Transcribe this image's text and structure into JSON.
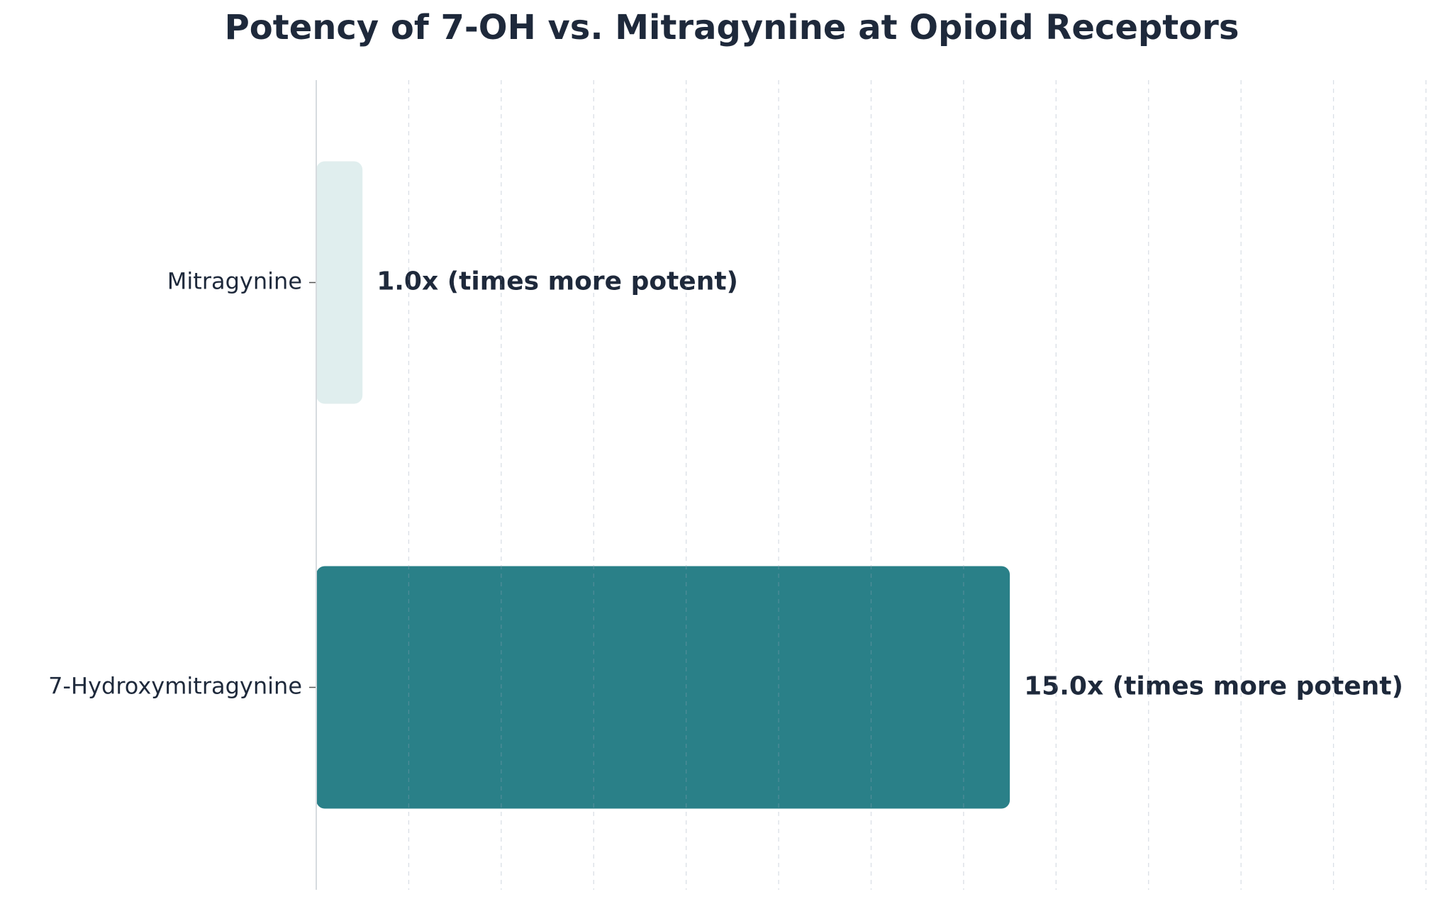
{
  "chart_data": {
    "type": "barh",
    "title": "Potency of 7-OH vs. Mitragynine at Opioid Receptors",
    "categories": [
      "Mitragynine",
      "7-Hydroxymitragynine"
    ],
    "values": [
      1.0,
      15.0
    ],
    "value_labels": [
      "1.0x (times more potent)",
      "15.0x (times more potent)"
    ],
    "colors": [
      "#e0eeee",
      "#2a8088"
    ],
    "xlim": [
      0,
      24
    ],
    "xticks": [
      0,
      2,
      4,
      6,
      8,
      10,
      12,
      14,
      16,
      18,
      20,
      22,
      24
    ],
    "grid": true
  }
}
